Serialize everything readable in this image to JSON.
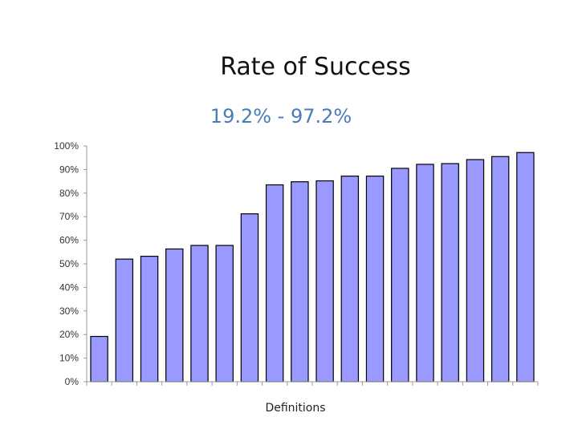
{
  "slide": {
    "title": "Rate of Success",
    "subtitle": "19.2% - 97.2%",
    "subtitle_color": "#4a7bb7"
  },
  "chart_data": {
    "type": "bar",
    "title": "",
    "xlabel": "Definitions",
    "ylabel": "",
    "ylim": [
      0,
      100
    ],
    "y_ticks": [
      "0%",
      "10%",
      "20%",
      "30%",
      "40%",
      "50%",
      "60%",
      "70%",
      "80%",
      "90%",
      "100%"
    ],
    "grid": false,
    "bar_color": "#9999ff",
    "bar_outline_color": "#000000",
    "values": [
      19.2,
      52,
      53.2,
      56.3,
      57.8,
      57.8,
      71.2,
      83.5,
      84.8,
      85.2,
      87.2,
      87.2,
      90.5,
      92.2,
      92.5,
      94.2,
      95.5,
      97.2
    ]
  }
}
